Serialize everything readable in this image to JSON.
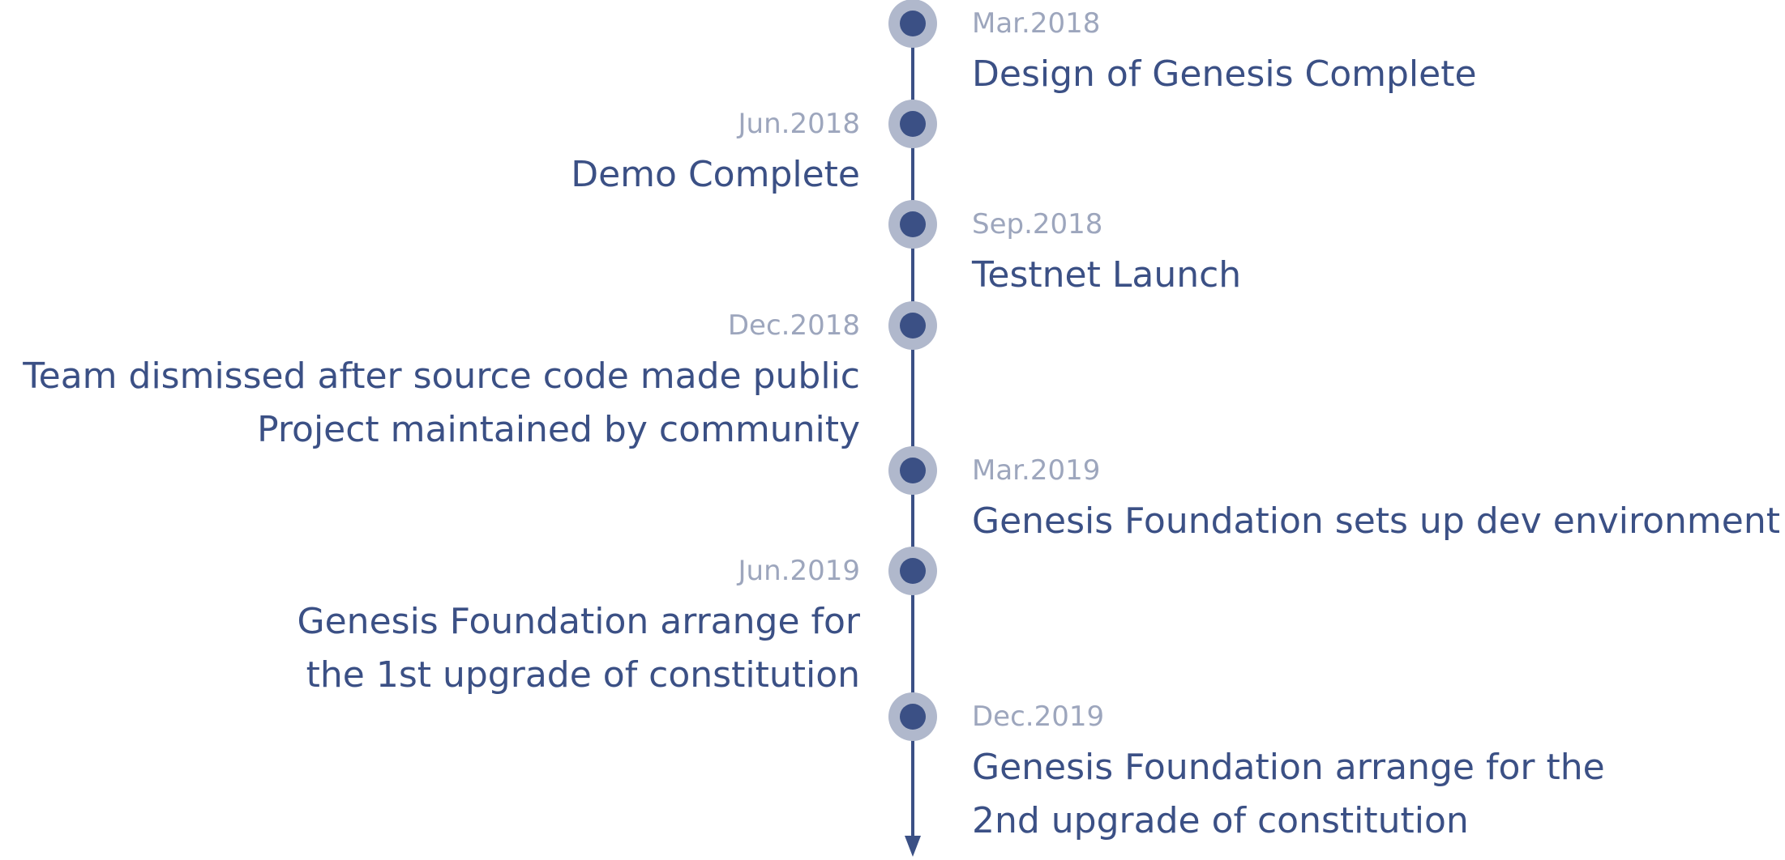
{
  "timeline": {
    "milestones": [
      {
        "date": "Mar.2018",
        "lines": [
          "Design of Genesis Complete"
        ]
      },
      {
        "date": "Jun.2018",
        "lines": [
          "Demo Complete"
        ]
      },
      {
        "date": "Sep.2018",
        "lines": [
          "Testnet Launch"
        ]
      },
      {
        "date": "Dec.2018",
        "lines": [
          "Team dismissed after source code made public",
          "Project maintained by community"
        ]
      },
      {
        "date": "Mar.2019",
        "lines": [
          "Genesis Foundation sets up dev environment"
        ]
      },
      {
        "date": "Jun.2019",
        "lines": [
          "Genesis Foundation arrange for",
          "the 1st upgrade of constitution"
        ]
      },
      {
        "date": "Dec.2019",
        "lines": [
          "Genesis Foundation arrange for the",
          "2nd upgrade of constitution"
        ]
      }
    ],
    "colors": {
      "axis": "#3b5085",
      "marker_ring": "#b0b8cc",
      "date_text": "#9da6bd",
      "description_text": "#3b5085"
    }
  }
}
